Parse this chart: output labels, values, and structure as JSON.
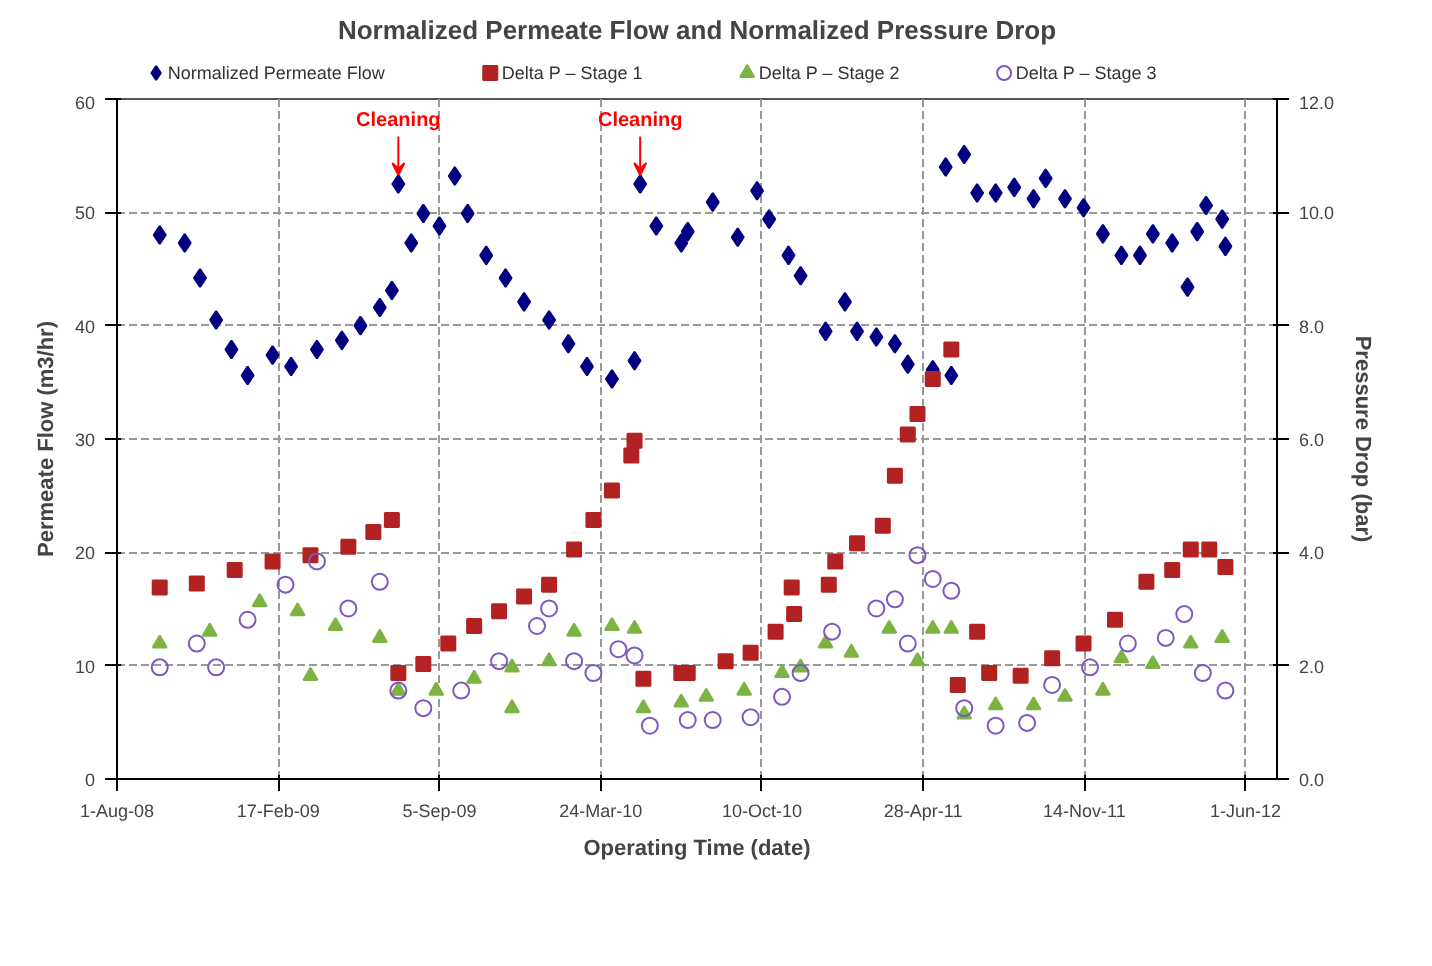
{
  "chart_data": {
    "type": "scatter",
    "title": "Normalized Permeate Flow and Normalized Pressure Drop",
    "xlabel": "Operating Time (date)",
    "ylabel": "Permeate Flow (m3/hr)",
    "y2label": "Pressure Drop (bar)",
    "xlim": [
      "2008-08-01",
      "2012-07-10"
    ],
    "xticks": [
      {
        "value": "2008-08-01",
        "label": "1-Aug-08"
      },
      {
        "value": "2009-02-17",
        "label": "17-Feb-09"
      },
      {
        "value": "2009-09-05",
        "label": "5-Sep-09"
      },
      {
        "value": "2010-03-24",
        "label": "24-Mar-10"
      },
      {
        "value": "2010-10-10",
        "label": "10-Oct-10"
      },
      {
        "value": "2011-04-28",
        "label": "28-Apr-11"
      },
      {
        "value": "2011-11-14",
        "label": "14-Nov-11"
      },
      {
        "value": "2012-06-01",
        "label": "1-Jun-12"
      }
    ],
    "ylim": [
      0,
      60
    ],
    "yticks": [
      0,
      10,
      20,
      30,
      40,
      50,
      60
    ],
    "y2lim": [
      0,
      12
    ],
    "y2ticks": [
      {
        "value": 0,
        "label": "0.0"
      },
      {
        "value": 2,
        "label": "2.0"
      },
      {
        "value": 4,
        "label": "4.0"
      },
      {
        "value": 6,
        "label": "6.0"
      },
      {
        "value": 8,
        "label": "8.0"
      },
      {
        "value": 10,
        "label": "10.0"
      },
      {
        "value": 12,
        "label": "12.0"
      }
    ],
    "grid": true,
    "legend": "top",
    "annotations": [
      {
        "text": "Cleaning",
        "x": "2009-07-16",
        "y": 52.5
      },
      {
        "text": "Cleaning",
        "x": "2010-05-12",
        "y": 52.5
      }
    ],
    "series": [
      {
        "name": "Normalized Permeate Flow",
        "color": "#000080",
        "marker": "diamond",
        "x": [
          "2008-09-23",
          "2008-10-24",
          "2008-11-12",
          "2008-12-02",
          "2008-12-21",
          "2009-01-10",
          "2009-02-10",
          "2009-03-05",
          "2009-04-06",
          "2009-05-07",
          "2009-05-30",
          "2009-06-23",
          "2009-07-08",
          "2009-07-16",
          "2009-08-01",
          "2009-08-16",
          "2009-09-05",
          "2009-09-24",
          "2009-10-10",
          "2009-11-02",
          "2009-11-26",
          "2009-12-19",
          "2010-01-19",
          "2010-02-12",
          "2010-03-07",
          "2010-04-07",
          "2010-05-05",
          "2010-05-12",
          "2010-06-01",
          "2010-07-02",
          "2010-07-10",
          "2010-08-10",
          "2010-09-10",
          "2010-10-04",
          "2010-10-19",
          "2010-11-12",
          "2010-11-27",
          "2010-12-28",
          "2011-01-21",
          "2011-02-05",
          "2011-03-01",
          "2011-03-24",
          "2011-04-09",
          "2011-05-10",
          "2011-05-26",
          "2011-06-02",
          "2011-06-18",
          "2011-07-04",
          "2011-07-27",
          "2011-08-19",
          "2011-09-12",
          "2011-09-27",
          "2011-10-21",
          "2011-11-13",
          "2011-12-07",
          "2011-12-30",
          "2012-01-22",
          "2012-02-07",
          "2012-03-02",
          "2012-03-21",
          "2012-04-02",
          "2012-04-13",
          "2012-05-03",
          "2012-05-07"
        ],
        "values": [
          48.0,
          47.3,
          44.2,
          40.5,
          37.9,
          35.6,
          37.4,
          36.4,
          37.9,
          38.7,
          40.0,
          41.6,
          43.1,
          52.5,
          47.3,
          49.9,
          48.8,
          53.2,
          49.9,
          46.2,
          44.2,
          42.1,
          40.5,
          38.4,
          36.4,
          35.3,
          36.9,
          52.5,
          48.8,
          47.3,
          48.3,
          50.9,
          47.8,
          51.9,
          49.4,
          46.2,
          44.4,
          39.5,
          42.1,
          39.5,
          39.0,
          38.4,
          36.6,
          36.1,
          54.0,
          35.6,
          55.1,
          51.7,
          51.7,
          52.2,
          51.2,
          53.0,
          51.2,
          50.4,
          48.1,
          46.2,
          46.2,
          48.1,
          47.3,
          43.4,
          48.3,
          50.6,
          49.4,
          47.0
        ]
      },
      {
        "name": "Delta P – Stage 1",
        "color": "#b22222",
        "marker": "square",
        "axis": "y2",
        "x": [
          "2008-09-23",
          "2008-11-08",
          "2008-12-25",
          "2009-02-10",
          "2009-03-29",
          "2009-05-15",
          "2009-06-15",
          "2009-07-08",
          "2009-07-16",
          "2009-08-16",
          "2009-09-16",
          "2009-10-18",
          "2009-11-18",
          "2009-12-19",
          "2010-01-19",
          "2010-02-19",
          "2010-03-15",
          "2010-04-07",
          "2010-05-01",
          "2010-05-05",
          "2010-05-16",
          "2010-07-02",
          "2010-07-10",
          "2010-08-26",
          "2010-09-26",
          "2010-10-27",
          "2010-11-16",
          "2010-11-19",
          "2011-01-01",
          "2011-01-09",
          "2011-02-05",
          "2011-03-09",
          "2011-03-24",
          "2011-04-09",
          "2011-04-21",
          "2011-05-10",
          "2011-06-02",
          "2011-06-10",
          "2011-07-04",
          "2011-07-19",
          "2011-08-27",
          "2011-10-05",
          "2011-11-13",
          "2011-12-22",
          "2012-01-30",
          "2012-03-02",
          "2012-03-25",
          "2012-04-17",
          "2012-05-07"
        ],
        "values": [
          3.38,
          3.45,
          3.69,
          3.84,
          3.95,
          4.1,
          4.36,
          4.57,
          1.87,
          2.03,
          2.39,
          2.7,
          2.96,
          3.22,
          3.43,
          4.05,
          4.57,
          5.09,
          5.71,
          5.97,
          1.77,
          1.87,
          1.87,
          2.08,
          2.23,
          2.6,
          3.38,
          2.91,
          3.43,
          3.84,
          4.16,
          4.47,
          5.35,
          6.08,
          6.44,
          7.06,
          7.58,
          1.66,
          2.6,
          1.87,
          1.82,
          2.13,
          2.39,
          2.81,
          3.48,
          3.69,
          4.05,
          4.05,
          3.74
        ]
      },
      {
        "name": "Delta P – Stage 2",
        "color": "#7cb342",
        "marker": "triangle",
        "axis": "y2",
        "x": [
          "2008-09-23",
          "2008-11-24",
          "2009-01-25",
          "2009-03-13",
          "2009-03-29",
          "2009-04-29",
          "2009-06-23",
          "2009-07-16",
          "2009-09-01",
          "2009-10-18",
          "2009-12-04",
          "2009-12-04",
          "2010-01-19",
          "2010-02-19",
          "2010-04-07",
          "2010-05-05",
          "2010-05-16",
          "2010-07-02",
          "2010-08-02",
          "2010-09-18",
          "2010-11-04",
          "2010-11-27",
          "2010-12-28",
          "2011-01-29",
          "2011-03-17",
          "2011-04-21",
          "2011-05-10",
          "2011-06-02",
          "2011-06-18",
          "2011-07-27",
          "2011-09-12",
          "2011-10-21",
          "2011-12-07",
          "2011-12-30",
          "2012-02-07",
          "2012-03-25",
          "2012-05-03"
        ],
        "values": [
          2.39,
          2.6,
          3.12,
          2.96,
          1.82,
          2.7,
          2.49,
          1.56,
          1.56,
          1.77,
          1.97,
          1.25,
          2.08,
          2.6,
          2.7,
          2.65,
          1.25,
          1.35,
          1.45,
          1.56,
          1.87,
          1.97,
          2.39,
          2.23,
          2.65,
          2.08,
          2.65,
          2.65,
          1.14,
          1.3,
          1.3,
          1.45,
          1.56,
          2.13,
          2.03,
          2.39,
          2.49
        ]
      },
      {
        "name": "Delta P – Stage 3",
        "color": "#7e57c2",
        "marker": "circle",
        "axis": "y2",
        "x": [
          "2008-09-23",
          "2008-11-08",
          "2008-12-02",
          "2009-01-10",
          "2009-02-26",
          "2009-04-06",
          "2009-05-15",
          "2009-06-23",
          "2009-07-16",
          "2009-08-16",
          "2009-10-02",
          "2009-11-18",
          "2010-01-04",
          "2010-01-19",
          "2010-02-19",
          "2010-03-15",
          "2010-04-15",
          "2010-05-05",
          "2010-05-24",
          "2010-07-10",
          "2010-08-10",
          "2010-09-26",
          "2010-11-04",
          "2010-11-27",
          "2011-01-05",
          "2011-03-01",
          "2011-03-24",
          "2011-04-09",
          "2011-04-21",
          "2011-05-10",
          "2011-06-02",
          "2011-06-18",
          "2011-07-27",
          "2011-09-04",
          "2011-10-05",
          "2011-11-21",
          "2012-01-07",
          "2012-02-23",
          "2012-03-17",
          "2012-04-09",
          "2012-05-07"
        ],
        "values": [
          1.97,
          2.39,
          1.97,
          2.81,
          3.43,
          3.84,
          3.01,
          3.48,
          1.56,
          1.25,
          1.56,
          2.08,
          2.7,
          3.01,
          2.08,
          1.87,
          2.29,
          2.18,
          0.94,
          1.04,
          1.04,
          1.09,
          1.45,
          1.87,
          2.6,
          3.01,
          3.17,
          2.39,
          3.95,
          3.53,
          3.32,
          1.25,
          0.94,
          0.99,
          1.66,
          1.97,
          2.39,
          2.49,
          2.91,
          1.87,
          1.56
        ]
      }
    ]
  }
}
